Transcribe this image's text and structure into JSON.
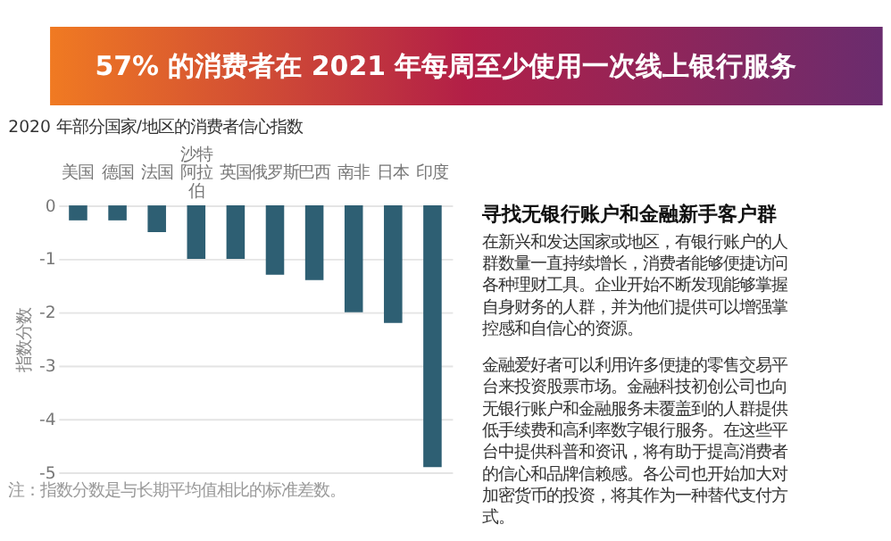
{
  "chart_data": {
    "type": "bar",
    "title": "57% 的消费者在 2021 年每周至少使用一次线上银行服务",
    "subtitle": "2020 年部分国家/地区的消费者信心指数",
    "categories": [
      "美国",
      "德国",
      "法国",
      "沙特阿拉伯",
      "英国",
      "俄罗斯",
      "巴西",
      "南非",
      "日本",
      "印度"
    ],
    "values": [
      -0.28,
      -0.28,
      -0.5,
      -1.0,
      -1.0,
      -1.3,
      -1.4,
      -2.0,
      -2.2,
      -4.9
    ],
    "color": "#2e5f73",
    "ylabel": "指数分数",
    "ylim": [
      -5,
      0
    ],
    "yticks": [
      0,
      -1,
      -2,
      -3,
      -4,
      -5
    ],
    "grid": "y",
    "annotations": [
      "注：指数分数是与长期平均值相比的标准差数。",
      "寻找无银行账户和金融新手客户群",
      "在新兴和发达国家或地区，有银行账户的人群数量一直持续增长，消费者能够便捷访问各种理财工具。企业开始不断发现能够掌握自身财务的人群，并为他们提供可以增强掌控感和自信心的资源。",
      "金融爱好者可以利用许多便捷的零售交易平台来投资股票市场。金融科技初创公司也向无银行账户和金融服务未覆盖到的人群提供低手续费和高利率数字银行服务。在这些平台中提供科普和资讯，将有助于提高消费者的信心和品牌信赖感。各公司也开始加大对加密货币的投资，将其作为一种替代支付方式。"
    ]
  }
}
